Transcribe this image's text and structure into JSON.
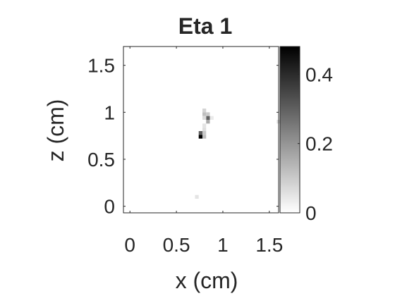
{
  "chart_data": {
    "type": "heatmap",
    "title": "Eta 1",
    "xlabel": "x (cm)",
    "ylabel": "z (cm)",
    "xlim": [
      -0.07,
      1.6
    ],
    "ylim": [
      -0.07,
      1.7
    ],
    "xticks": [
      0,
      0.5,
      1,
      1.5
    ],
    "xtick_labels": [
      "0",
      "0.5",
      "1",
      "1.5"
    ],
    "yticks": [
      0,
      0.5,
      1,
      1.5
    ],
    "ytick_labels": [
      "0",
      "0.5",
      "1",
      "1.5"
    ],
    "colormap": "gray-reversed",
    "color_range": [
      0,
      0.48
    ],
    "colorbar_ticks": [
      0,
      0.2,
      0.4
    ],
    "colorbar_tick_labels": [
      "0",
      "0.2",
      "0.4"
    ],
    "cell_size": 0.04,
    "grid": false,
    "cells": [
      {
        "x": 0.8,
        "z": 1.02,
        "value": 0.08
      },
      {
        "x": 0.8,
        "z": 0.98,
        "value": 0.12
      },
      {
        "x": 0.84,
        "z": 0.98,
        "value": 0.1
      },
      {
        "x": 0.84,
        "z": 0.94,
        "value": 0.3
      },
      {
        "x": 0.8,
        "z": 0.94,
        "value": 0.07
      },
      {
        "x": 0.88,
        "z": 0.94,
        "value": 0.04
      },
      {
        "x": 0.84,
        "z": 0.9,
        "value": 0.16
      },
      {
        "x": 0.8,
        "z": 0.86,
        "value": 0.05
      },
      {
        "x": 0.8,
        "z": 0.82,
        "value": 0.06
      },
      {
        "x": 0.76,
        "z": 0.78,
        "value": 0.3
      },
      {
        "x": 0.8,
        "z": 0.78,
        "value": 0.1
      },
      {
        "x": 0.76,
        "z": 0.74,
        "value": 0.48
      },
      {
        "x": 0.8,
        "z": 0.74,
        "value": 0.12
      },
      {
        "x": 0.72,
        "z": 0.1,
        "value": 0.05
      },
      {
        "x": 1.6,
        "z": 0.9,
        "value": 0.06
      }
    ]
  }
}
